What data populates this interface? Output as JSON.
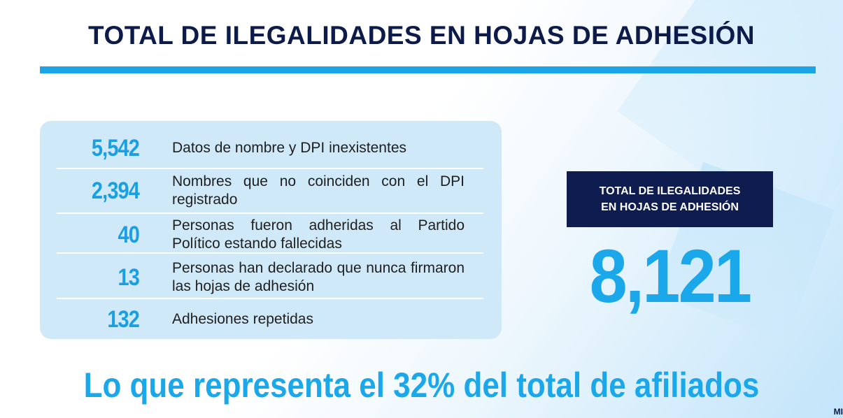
{
  "title": "TOTAL DE ILEGALIDADES EN HOJAS DE ADHESIÓN",
  "rows": [
    {
      "value": "5,542",
      "text": "Datos de nombre y DPI inexistentes"
    },
    {
      "value": "2,394",
      "text": "Nombres que no coinciden con el DPI registrado"
    },
    {
      "value": "40",
      "text": "Personas fueron adheridas al Partido Político estando fallecidas"
    },
    {
      "value": "13",
      "text": "Personas han declarado que nunca firmaron las hojas de adhesión"
    },
    {
      "value": "132",
      "text": "Adhesiones repetidas"
    }
  ],
  "total": {
    "label_line1": "TOTAL DE ILEGALIDADES",
    "label_line2": "EN HOJAS DE ADHESIÓN",
    "value": "8,121"
  },
  "footer": "Lo que representa el 32% del total de afiliados",
  "corner_mark": "MI",
  "colors": {
    "navy": "#0d1b4b",
    "accent": "#1aa8ea",
    "panel": "#cfe9f8"
  }
}
